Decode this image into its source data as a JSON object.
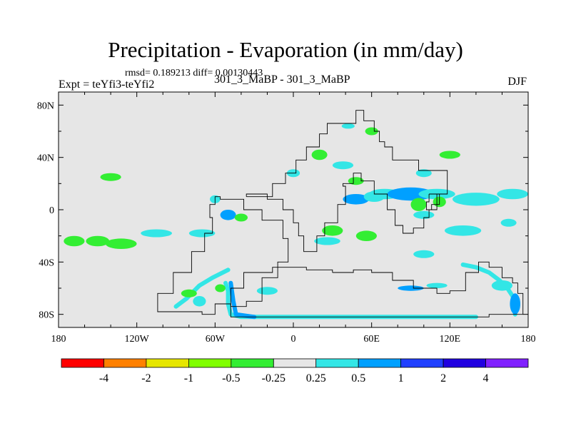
{
  "chart_data": {
    "type": "heatmap",
    "title": "Precipitation - Evaporation (in mm/day)",
    "stats_text": "rmsd= 0.189213 diff= 0.00130443",
    "rmsd": 0.189213,
    "diff": 0.00130443,
    "left_label": "Expt = teYfi3-teYfi2",
    "center_label": "301_3_MaBP - 301_3_MaBP",
    "right_label": "DJF",
    "xlim": [
      -180,
      180
    ],
    "ylim": [
      -90,
      90
    ],
    "x_ticks": [
      {
        "value": -180,
        "label": "180"
      },
      {
        "value": -120,
        "label": "120W"
      },
      {
        "value": -60,
        "label": "60W"
      },
      {
        "value": 0,
        "label": "0"
      },
      {
        "value": 60,
        "label": "60E"
      },
      {
        "value": 120,
        "label": "120E"
      },
      {
        "value": 180,
        "label": "180"
      }
    ],
    "y_ticks": [
      {
        "value": 80,
        "label": "80N"
      },
      {
        "value": 40,
        "label": "40N"
      },
      {
        "value": 0,
        "label": "0"
      },
      {
        "value": -40,
        "label": "40S"
      },
      {
        "value": -80,
        "label": "80S"
      }
    ],
    "colorbar": {
      "levels": [
        "-4",
        "-2",
        "-1",
        "-0.5",
        "-0.25",
        "0.25",
        "0.5",
        "1",
        "2",
        "4"
      ],
      "colors": [
        "#ff0000",
        "#ff8000",
        "#e6e600",
        "#80ff00",
        "#33ee33",
        "#e6e6e6",
        "#33e6e6",
        "#00a0ff",
        "#2040ff",
        "#2000e0",
        "#8020ff"
      ]
    },
    "background_color": "#e6e6e6",
    "coast_polyline": [
      [
        -48,
        -74
      ],
      [
        -36,
        -70
      ],
      [
        -24,
        -52
      ],
      [
        -12,
        -40
      ],
      [
        -4,
        -22
      ],
      [
        -8,
        -8
      ],
      [
        -24,
        0
      ],
      [
        -38,
        8
      ],
      [
        -52,
        8
      ],
      [
        -56,
        10
      ],
      [
        -60,
        4
      ],
      [
        -64,
        -6
      ],
      [
        -62,
        -18
      ],
      [
        -68,
        -32
      ],
      [
        -78,
        -48
      ],
      [
        -92,
        -64
      ],
      [
        -104,
        -78
      ],
      [
        -70,
        -80
      ],
      [
        -60,
        -72
      ],
      [
        -48,
        -74
      ]
    ],
    "coast_polyline_2": [
      [
        -36,
        10
      ],
      [
        -24,
        10
      ],
      [
        -16,
        20
      ],
      [
        -6,
        28
      ],
      [
        2,
        38
      ],
      [
        10,
        48
      ],
      [
        20,
        58
      ],
      [
        26,
        66
      ],
      [
        34,
        66
      ],
      [
        46,
        66
      ],
      [
        48,
        76
      ],
      [
        54,
        68
      ],
      [
        62,
        60
      ],
      [
        66,
        52
      ],
      [
        70,
        48
      ],
      [
        76,
        38
      ],
      [
        84,
        38
      ],
      [
        96,
        30
      ],
      [
        110,
        30
      ],
      [
        118,
        22
      ],
      [
        118,
        12
      ],
      [
        110,
        0
      ],
      [
        104,
        -6
      ],
      [
        100,
        -14
      ],
      [
        92,
        -18
      ],
      [
        84,
        -12
      ],
      [
        78,
        0
      ],
      [
        72,
        12
      ],
      [
        62,
        22
      ],
      [
        52,
        28
      ],
      [
        46,
        20
      ],
      [
        38,
        18
      ],
      [
        40,
        4
      ],
      [
        34,
        -10
      ],
      [
        24,
        -20
      ],
      [
        18,
        -32
      ],
      [
        8,
        -20
      ],
      [
        4,
        -10
      ],
      [
        0,
        0
      ],
      [
        -8,
        8
      ],
      [
        -20,
        12
      ],
      [
        -36,
        10
      ]
    ],
    "coast_polyline_3": [
      [
        30,
        -48
      ],
      [
        46,
        -46
      ],
      [
        60,
        -48
      ],
      [
        76,
        -54
      ],
      [
        92,
        -60
      ],
      [
        110,
        -64
      ],
      [
        120,
        -62
      ],
      [
        132,
        -48
      ],
      [
        142,
        -40
      ],
      [
        150,
        -44
      ],
      [
        160,
        -52
      ],
      [
        168,
        -56
      ],
      [
        172,
        -64
      ],
      [
        176,
        -72
      ],
      [
        176,
        -80
      ],
      [
        150,
        -82
      ],
      [
        110,
        -82
      ],
      [
        60,
        -82
      ],
      [
        20,
        -82
      ],
      [
        -44,
        -82
      ],
      [
        -48,
        -60
      ],
      [
        -38,
        -48
      ],
      [
        -16,
        -44
      ],
      [
        10,
        -46
      ],
      [
        30,
        -48
      ]
    ],
    "coast_polyline_4": [
      [
        104,
        12
      ],
      [
        110,
        12
      ],
      [
        112,
        4
      ],
      [
        106,
        0
      ],
      [
        102,
        6
      ],
      [
        104,
        12
      ]
    ],
    "anomaly_patches": [
      {
        "lon": -140,
        "lat": 25,
        "rx": 8,
        "ry": 3,
        "value": -0.3
      },
      {
        "lon": -168,
        "lat": -24,
        "rx": 8,
        "ry": 4,
        "value": -0.3
      },
      {
        "lon": -150,
        "lat": -24,
        "rx": 9,
        "ry": 4,
        "value": -0.4
      },
      {
        "lon": -132,
        "lat": -26,
        "rx": 12,
        "ry": 4,
        "value": -0.3
      },
      {
        "lon": -105,
        "lat": -18,
        "rx": 12,
        "ry": 3,
        "value": 0.3
      },
      {
        "lon": -70,
        "lat": -18,
        "rx": 10,
        "ry": 3,
        "value": 0.3
      },
      {
        "lon": -50,
        "lat": -4,
        "rx": 6,
        "ry": 4,
        "value": 0.6
      },
      {
        "lon": -40,
        "lat": -6,
        "rx": 5,
        "ry": 3,
        "value": -0.4
      },
      {
        "lon": -60,
        "lat": 8,
        "rx": 4,
        "ry": 3,
        "value": 0.4
      },
      {
        "lon": 0,
        "lat": 28,
        "rx": 5,
        "ry": 3,
        "value": 0.3
      },
      {
        "lon": 20,
        "lat": 42,
        "rx": 6,
        "ry": 4,
        "value": -0.4
      },
      {
        "lon": 38,
        "lat": 34,
        "rx": 8,
        "ry": 3,
        "value": 0.3
      },
      {
        "lon": 48,
        "lat": 22,
        "rx": 6,
        "ry": 3,
        "value": -0.3
      },
      {
        "lon": 48,
        "lat": 8,
        "rx": 10,
        "ry": 4,
        "value": 0.6
      },
      {
        "lon": 62,
        "lat": 10,
        "rx": 8,
        "ry": 4,
        "value": 0.4
      },
      {
        "lon": 70,
        "lat": 12,
        "rx": 12,
        "ry": 4,
        "value": 0.3
      },
      {
        "lon": 90,
        "lat": 12,
        "rx": 18,
        "ry": 5,
        "value": 0.6
      },
      {
        "lon": 110,
        "lat": 12,
        "rx": 14,
        "ry": 4,
        "value": 0.3
      },
      {
        "lon": 140,
        "lat": 8,
        "rx": 18,
        "ry": 5,
        "value": 0.4
      },
      {
        "lon": 168,
        "lat": 12,
        "rx": 12,
        "ry": 4,
        "value": 0.3
      },
      {
        "lon": 96,
        "lat": 4,
        "rx": 6,
        "ry": 5,
        "value": -0.4
      },
      {
        "lon": 112,
        "lat": 6,
        "rx": 5,
        "ry": 4,
        "value": -0.4
      },
      {
        "lon": 100,
        "lat": -4,
        "rx": 8,
        "ry": 3,
        "value": 0.3
      },
      {
        "lon": 30,
        "lat": -16,
        "rx": 8,
        "ry": 4,
        "value": -0.4
      },
      {
        "lon": 56,
        "lat": -20,
        "rx": 8,
        "ry": 4,
        "value": -0.4
      },
      {
        "lon": 26,
        "lat": -24,
        "rx": 10,
        "ry": 3,
        "value": 0.3
      },
      {
        "lon": 130,
        "lat": -16,
        "rx": 14,
        "ry": 4,
        "value": 0.3
      },
      {
        "lon": 165,
        "lat": -10,
        "rx": 6,
        "ry": 3,
        "value": 0.3
      },
      {
        "lon": 100,
        "lat": -34,
        "rx": 8,
        "ry": 3,
        "value": 0.3
      },
      {
        "lon": -20,
        "lat": -62,
        "rx": 8,
        "ry": 3,
        "value": 0.3
      },
      {
        "lon": -80,
        "lat": -64,
        "rx": 6,
        "ry": 3,
        "value": -0.4
      },
      {
        "lon": -72,
        "lat": -70,
        "rx": 5,
        "ry": 4,
        "value": 0.4
      },
      {
        "lon": -56,
        "lat": -60,
        "rx": 4,
        "ry": 3,
        "value": -0.4
      },
      {
        "lon": 90,
        "lat": -60,
        "rx": 10,
        "ry": 2,
        "value": 0.6
      },
      {
        "lon": 110,
        "lat": -58,
        "rx": 8,
        "ry": 2,
        "value": 0.3
      },
      {
        "lon": 160,
        "lat": -58,
        "rx": 8,
        "ry": 4,
        "value": 0.4
      },
      {
        "lon": 170,
        "lat": -72,
        "rx": 4,
        "ry": 8,
        "value": 0.6
      },
      {
        "lon": 120,
        "lat": 42,
        "rx": 8,
        "ry": 3,
        "value": -0.4
      },
      {
        "lon": 100,
        "lat": 28,
        "rx": 6,
        "ry": 3,
        "value": 0.3
      },
      {
        "lon": 60,
        "lat": 60,
        "rx": 5,
        "ry": 3,
        "value": -0.3
      },
      {
        "lon": 42,
        "lat": 64,
        "rx": 5,
        "ry": 2,
        "value": 0.3
      }
    ],
    "coastal_bands": [
      {
        "points": [
          [
            -52,
            -56
          ],
          [
            -50,
            -62
          ],
          [
            -50,
            -72
          ],
          [
            -48,
            -80
          ],
          [
            -40,
            -82
          ],
          [
            -20,
            -82
          ],
          [
            20,
            -82
          ],
          [
            60,
            -82
          ],
          [
            100,
            -82
          ],
          [
            140,
            -82
          ]
        ],
        "value": 0.3
      },
      {
        "points": [
          [
            -90,
            -74
          ],
          [
            -82,
            -68
          ],
          [
            -72,
            -58
          ],
          [
            -62,
            -52
          ],
          [
            -50,
            -46
          ]
        ],
        "value": 0.3
      },
      {
        "points": [
          [
            130,
            -42
          ],
          [
            140,
            -44
          ],
          [
            150,
            -48
          ],
          [
            158,
            -54
          ],
          [
            164,
            -60
          ],
          [
            168,
            -66
          ],
          [
            170,
            -74
          ],
          [
            170,
            -80
          ]
        ],
        "value": 0.3
      },
      {
        "points": [
          [
            -48,
            -56
          ],
          [
            -46,
            -70
          ],
          [
            -44,
            -80
          ],
          [
            -30,
            -82
          ]
        ],
        "value": 0.6
      }
    ]
  }
}
